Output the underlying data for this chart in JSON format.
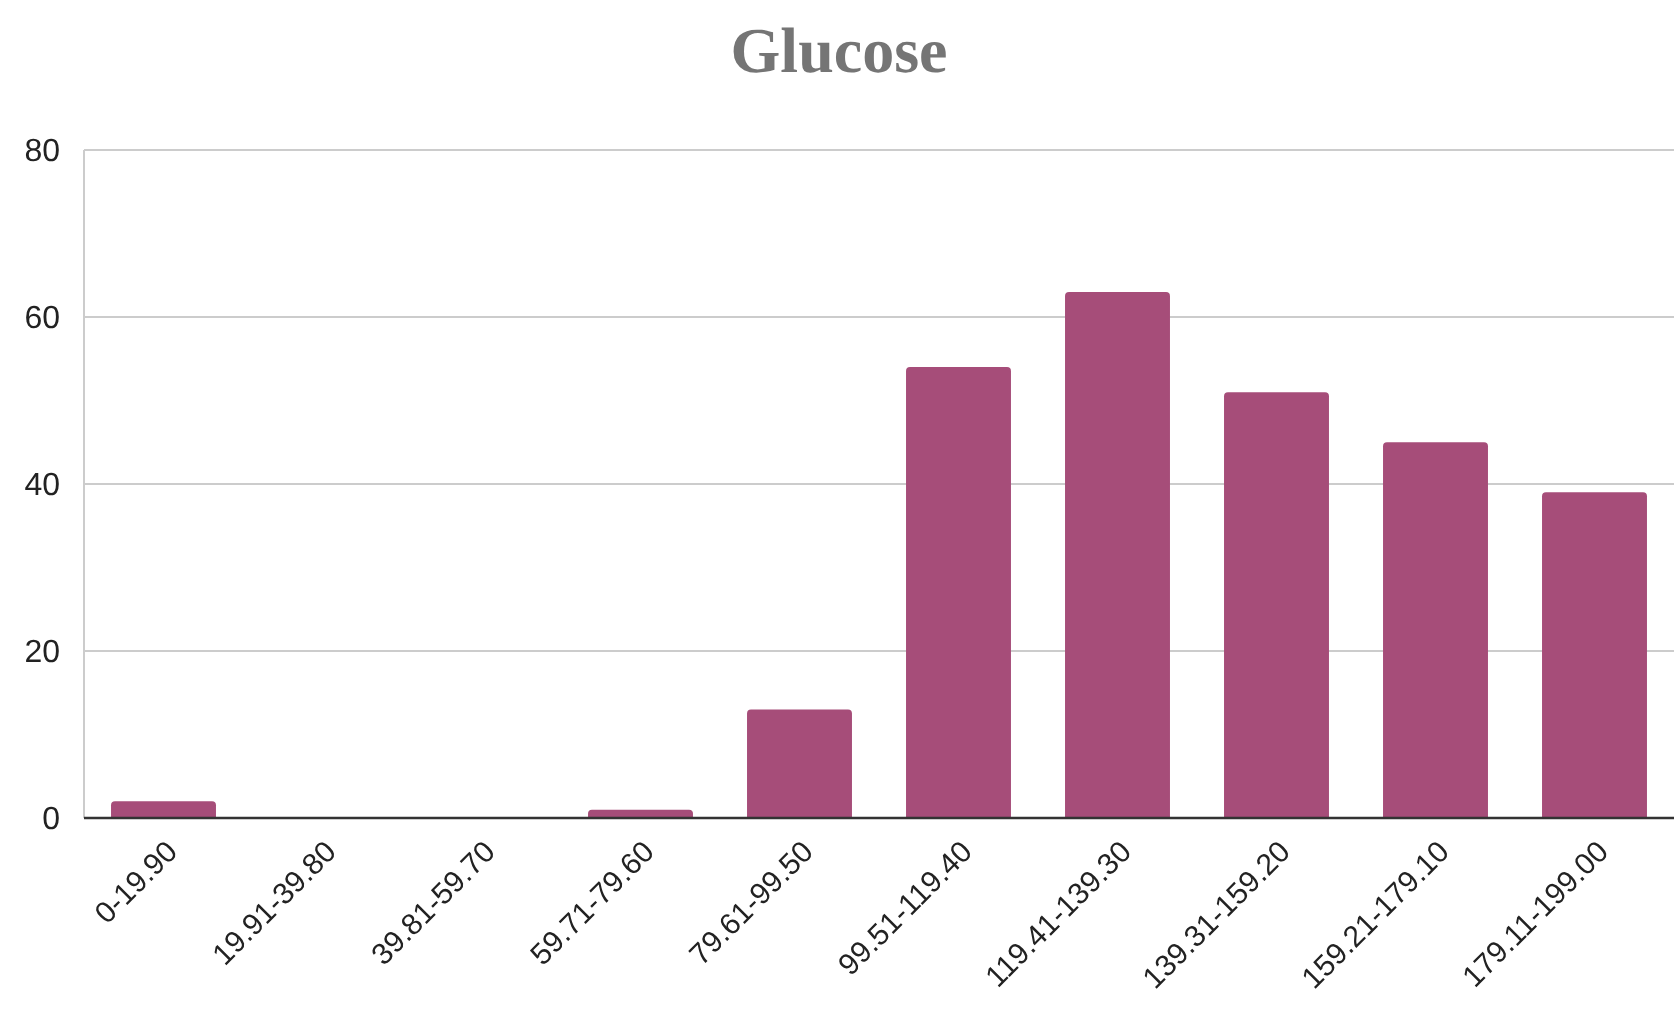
{
  "chart_data": {
    "type": "bar",
    "title": "Glucose",
    "categories": [
      "0-19.90",
      "19.91-39.80",
      "39.81-59.70",
      "59.71-79.60",
      "79.61-99.50",
      "99.51-119.40",
      "119.41-139.30",
      "139.31-159.20",
      "159.21-179.10",
      "179.11-199.00"
    ],
    "values": [
      2,
      0,
      0,
      1,
      13,
      54,
      63,
      51,
      45,
      39
    ],
    "color": "#a64d79",
    "ylim": [
      0,
      80
    ],
    "yticks": [
      0,
      20,
      40,
      60,
      80
    ],
    "grid": "y"
  }
}
